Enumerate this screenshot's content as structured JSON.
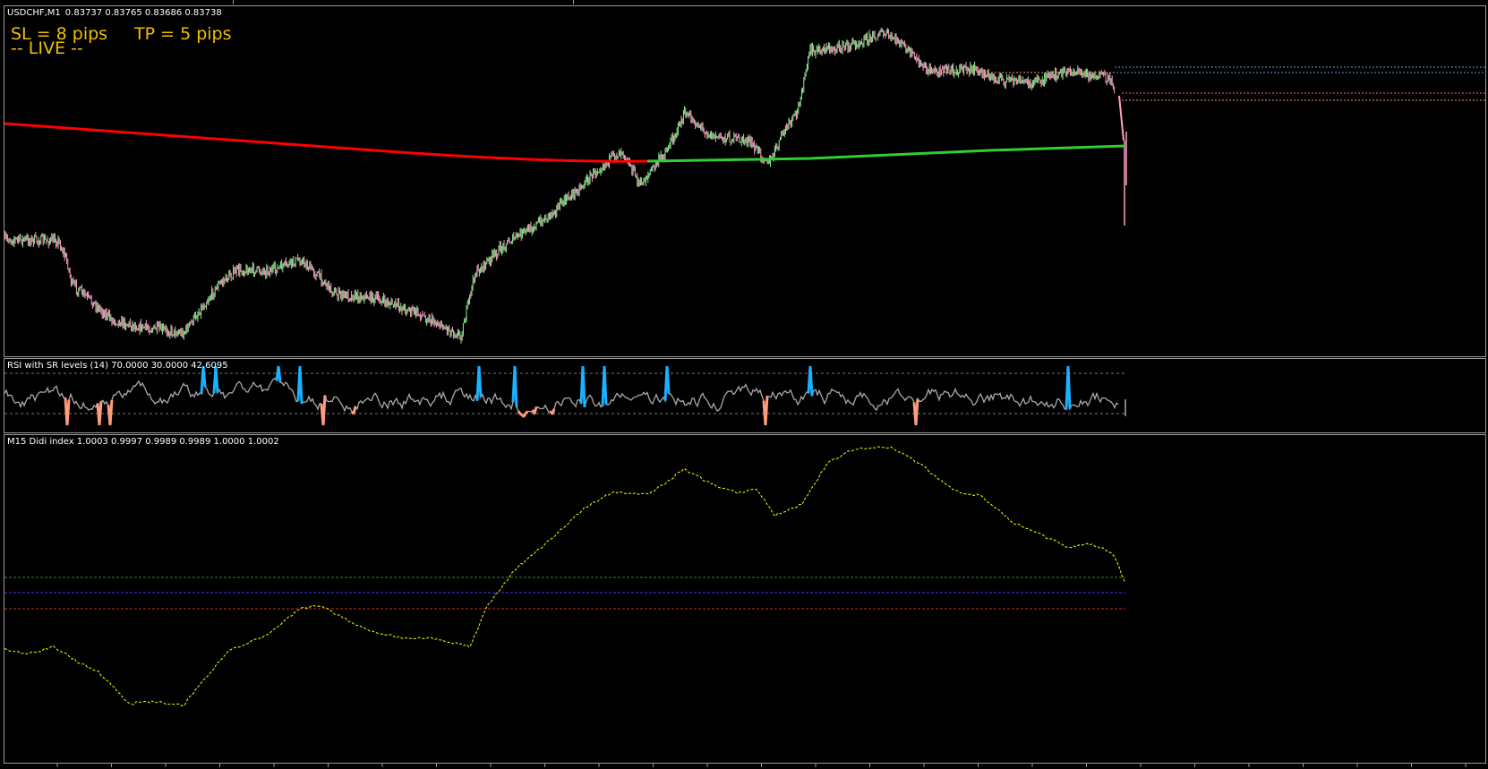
{
  "main_chart": {
    "symbol": "USDCHF,M1",
    "ohlc": "0.83737 0.83765 0.83686 0.83738",
    "sl_text": "SL = 8 pips",
    "tp_text": "TP = 5 pips",
    "status_text": "-- LIVE --"
  },
  "rsi_pane": {
    "label": "RSI with SR levels (14) 70.0000 30.0000 42.6095"
  },
  "didi_pane": {
    "label": "M15 Didi index 1.0003 0.9997 0.9989 0.9989 1.0000 1.0002"
  },
  "colors": {
    "background": "#000000",
    "bull_candle": "#90ee90",
    "bear_candle": "#ff9fc8",
    "ma_down": "#ff0000",
    "ma_up": "#32cd32",
    "overlay_text": "#f0c000",
    "rsi_line": "#a9a9a9",
    "rsi_overbought": "#1ab2ff",
    "rsi_oversold": "#ff9c7a",
    "didi_line": "#ffff00"
  }
}
